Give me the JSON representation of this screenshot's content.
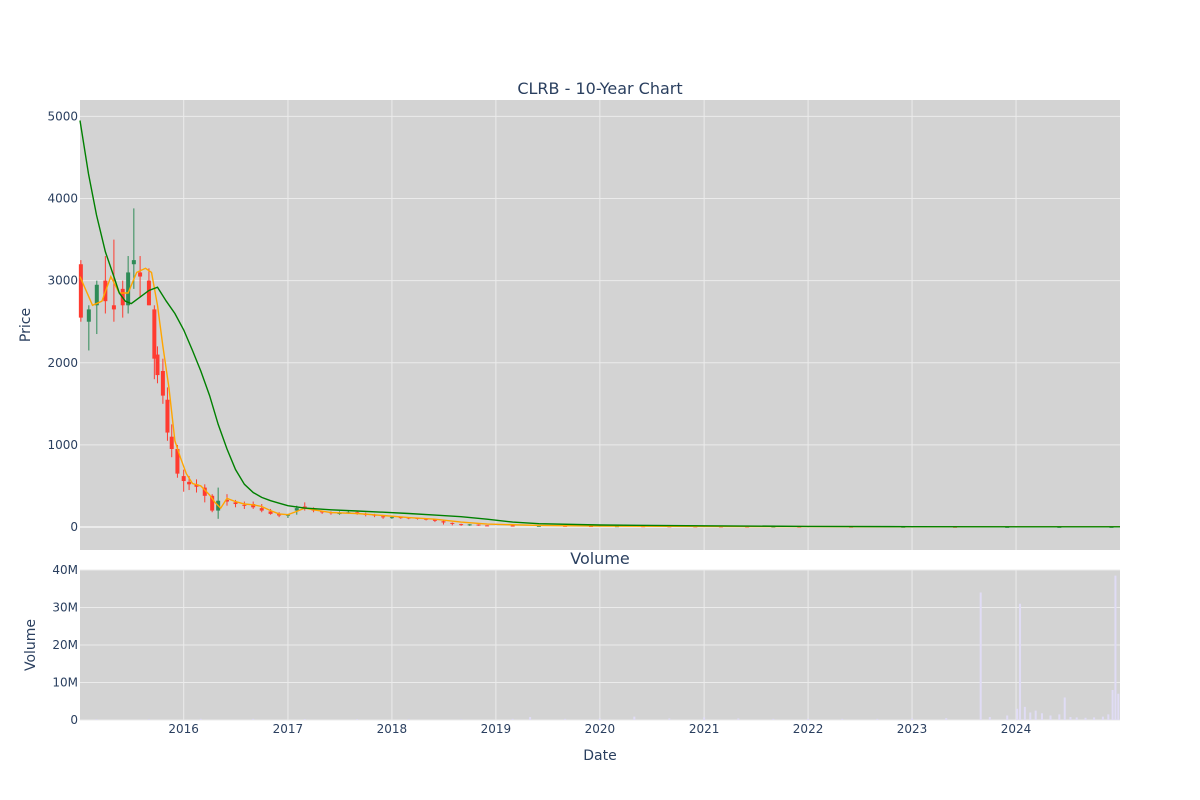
{
  "colors": {
    "plot_bg": "#d3d3d3",
    "grid": "#ebebeb",
    "increasing": "#2e8b57",
    "decreasing": "#ff3b30",
    "ma_short": "#ffa500",
    "ma_long": "#008000",
    "volume": "#e0dcf5",
    "text": "#2a3f5f"
  },
  "chart_data": [
    {
      "type": "candlestick",
      "title": "CLRB - 10-Year Chart",
      "xlabel": "",
      "ylabel": "Price",
      "ylim": [
        -280,
        5200
      ],
      "x_range": [
        "2015-01-02",
        "2024-12-31"
      ],
      "grid": true,
      "y_ticks": [
        0,
        1000,
        2000,
        3000,
        4000,
        5000
      ],
      "x_ticks": [
        "2016",
        "2017",
        "2018",
        "2019",
        "2020",
        "2021",
        "2022",
        "2023",
        "2024"
      ],
      "series": [
        {
          "kind": "candlestick",
          "x": [
            "2015-01-05",
            "2015-02-02",
            "2015-03-02",
            "2015-04-01",
            "2015-05-01",
            "2015-06-01",
            "2015-06-20",
            "2015-07-10",
            "2015-08-01",
            "2015-09-01",
            "2015-09-20",
            "2015-10-01",
            "2015-10-20",
            "2015-11-05",
            "2015-11-20",
            "2015-12-10",
            "2016-01-01",
            "2016-01-20",
            "2016-02-15",
            "2016-03-15",
            "2016-04-10",
            "2016-05-01",
            "2016-06-01",
            "2016-07-01",
            "2016-08-01",
            "2016-09-01",
            "2016-10-01",
            "2016-11-01",
            "2016-12-01",
            "2017-01-01",
            "2017-02-01",
            "2017-03-01",
            "2017-04-01",
            "2017-05-01",
            "2017-06-01",
            "2017-07-01",
            "2017-08-01",
            "2017-09-01",
            "2017-10-01",
            "2017-11-01",
            "2017-12-01",
            "2018-01-01",
            "2018-02-01",
            "2018-03-01",
            "2018-04-01",
            "2018-05-01",
            "2018-06-01",
            "2018-07-01",
            "2018-08-01",
            "2018-09-01",
            "2018-10-01",
            "2018-11-01",
            "2018-12-01",
            "2019-03-01",
            "2019-06-01",
            "2019-09-01",
            "2019-12-01",
            "2020-03-01",
            "2020-06-01",
            "2020-09-01",
            "2020-12-01",
            "2021-03-01",
            "2021-06-01",
            "2021-09-01",
            "2021-12-01",
            "2022-06-01",
            "2022-12-01",
            "2023-06-01",
            "2023-12-01",
            "2024-06-01",
            "2024-12-01"
          ],
          "open": [
            3200,
            2500,
            2700,
            3000,
            2700,
            2900,
            2700,
            3200,
            3100,
            3000,
            2650,
            2100,
            1900,
            1550,
            1100,
            950,
            620,
            550,
            520,
            480,
            380,
            200,
            330,
            300,
            270,
            280,
            230,
            190,
            160,
            140,
            200,
            250,
            220,
            190,
            180,
            170,
            175,
            180,
            160,
            150,
            130,
            120,
            120,
            115,
            110,
            100,
            95,
            70,
            50,
            35,
            30,
            30,
            20,
            18,
            15,
            15,
            12,
            10,
            10,
            9,
            8,
            7,
            6,
            5,
            5,
            4,
            3,
            3,
            2,
            2,
            2
          ],
          "high": [
            3250,
            2700,
            3000,
            3300,
            3500,
            3000,
            3300,
            3880,
            3300,
            3150,
            2700,
            2200,
            2050,
            1700,
            1250,
            1000,
            700,
            620,
            580,
            520,
            400,
            480,
            400,
            330,
            310,
            310,
            280,
            220,
            180,
            160,
            260,
            300,
            240,
            200,
            190,
            190,
            195,
            200,
            175,
            160,
            140,
            130,
            125,
            120,
            115,
            105,
            100,
            80,
            55,
            40,
            35,
            32,
            22,
            20,
            18,
            16,
            14,
            12,
            11,
            10,
            9,
            8,
            7,
            6,
            6,
            5,
            4,
            4,
            3,
            3,
            3
          ],
          "low": [
            2500,
            2150,
            2350,
            2600,
            2500,
            2550,
            2600,
            2900,
            2800,
            2700,
            1800,
            1750,
            1500,
            1050,
            850,
            600,
            430,
            450,
            420,
            300,
            180,
            100,
            260,
            240,
            220,
            220,
            180,
            150,
            120,
            110,
            150,
            200,
            180,
            160,
            150,
            150,
            160,
            150,
            130,
            120,
            100,
            100,
            100,
            95,
            90,
            80,
            60,
            30,
            20,
            15,
            15,
            15,
            10,
            10,
            8,
            8,
            6,
            5,
            5,
            4,
            3,
            3,
            2,
            2,
            1,
            1,
            1,
            1,
            1,
            1,
            1
          ],
          "close": [
            2550,
            2650,
            2950,
            2750,
            2650,
            2700,
            3100,
            3250,
            3050,
            2700,
            2050,
            1850,
            1600,
            1150,
            950,
            650,
            560,
            520,
            490,
            380,
            200,
            320,
            310,
            280,
            260,
            240,
            200,
            160,
            140,
            150,
            230,
            240,
            200,
            185,
            175,
            170,
            180,
            165,
            150,
            140,
            125,
            120,
            118,
            112,
            105,
            98,
            75,
            55,
            40,
            33,
            32,
            22,
            18,
            16,
            15,
            13,
            11,
            10,
            9,
            8,
            7,
            6,
            5,
            5,
            4,
            3,
            3,
            2,
            2,
            2,
            2
          ]
        },
        {
          "kind": "line",
          "name": "",
          "color": "#ffa500",
          "x": [
            "2015-01-02",
            "2015-02-15",
            "2015-03-20",
            "2015-04-20",
            "2015-05-20",
            "2015-06-20",
            "2015-07-20",
            "2015-08-20",
            "2015-09-10",
            "2015-10-01",
            "2015-10-20",
            "2015-11-10",
            "2015-12-01",
            "2015-12-20",
            "2016-01-10",
            "2016-02-01",
            "2016-03-01",
            "2016-04-01",
            "2016-04-20",
            "2016-05-10",
            "2016-06-01",
            "2016-07-01",
            "2016-08-01",
            "2016-09-01",
            "2016-10-01",
            "2016-11-01",
            "2016-12-01",
            "2017-01-01",
            "2017-02-01",
            "2017-03-01",
            "2017-04-01",
            "2017-06-01",
            "2017-09-01",
            "2017-12-01",
            "2018-03-01",
            "2018-06-01",
            "2018-09-01",
            "2018-12-01",
            "2019-06-01",
            "2020-01-01",
            "2021-01-01",
            "2022-01-01",
            "2023-01-01",
            "2024-01-01",
            "2024-12-31"
          ],
          "y": [
            3050,
            2700,
            2750,
            3050,
            2850,
            2850,
            3100,
            3150,
            3100,
            2700,
            2200,
            1700,
            1050,
            850,
            650,
            530,
            500,
            390,
            300,
            230,
            350,
            310,
            280,
            270,
            250,
            200,
            160,
            150,
            190,
            230,
            210,
            175,
            165,
            140,
            115,
            95,
            60,
            35,
            20,
            12,
            8,
            5,
            3,
            2,
            2
          ]
        },
        {
          "kind": "line",
          "name": "",
          "color": "#008000",
          "x": [
            "2015-01-02",
            "2015-02-01",
            "2015-03-01",
            "2015-04-01",
            "2015-05-01",
            "2015-05-20",
            "2015-06-10",
            "2015-07-01",
            "2015-08-01",
            "2015-09-01",
            "2015-10-01",
            "2015-11-01",
            "2015-12-01",
            "2016-01-01",
            "2016-02-01",
            "2016-03-01",
            "2016-04-01",
            "2016-05-01",
            "2016-06-01",
            "2016-07-01",
            "2016-08-01",
            "2016-09-01",
            "2016-10-01",
            "2016-11-01",
            "2016-12-01",
            "2017-01-01",
            "2017-03-01",
            "2017-06-01",
            "2017-09-01",
            "2017-12-01",
            "2018-03-01",
            "2018-06-01",
            "2018-09-01",
            "2018-12-01",
            "2019-03-01",
            "2019-06-01",
            "2020-01-01",
            "2021-01-01",
            "2022-01-01",
            "2023-01-01",
            "2024-01-01",
            "2024-12-31"
          ],
          "y": [
            4950,
            4300,
            3800,
            3350,
            3050,
            2850,
            2750,
            2720,
            2800,
            2880,
            2920,
            2750,
            2600,
            2400,
            2150,
            1900,
            1600,
            1250,
            950,
            700,
            520,
            420,
            360,
            320,
            290,
            260,
            230,
            210,
            195,
            180,
            165,
            145,
            125,
            95,
            60,
            40,
            25,
            15,
            8,
            4,
            2,
            2
          ]
        }
      ]
    },
    {
      "type": "bar",
      "title": "Volume",
      "xlabel": "Date",
      "ylabel": "Volume",
      "ylim": [
        0,
        40000000
      ],
      "grid": true,
      "y_tick_labels": [
        "0",
        "10M",
        "20M",
        "30M",
        "40M"
      ],
      "y_ticks": [
        0,
        10000000,
        20000000,
        30000000,
        40000000
      ],
      "x_ticks": [
        "2016",
        "2017",
        "2018",
        "2019",
        "2020",
        "2021",
        "2022",
        "2023",
        "2024"
      ],
      "x": [
        "2015-03-01",
        "2015-09-01",
        "2016-03-01",
        "2016-09-01",
        "2017-03-01",
        "2017-09-01",
        "2018-03-01",
        "2018-09-01",
        "2019-03-01",
        "2019-05-01",
        "2019-09-01",
        "2020-01-01",
        "2020-05-01",
        "2020-09-01",
        "2021-01-01",
        "2021-05-01",
        "2021-09-01",
        "2022-01-01",
        "2022-05-01",
        "2022-09-01",
        "2023-01-01",
        "2023-05-01",
        "2023-08-30",
        "2023-10-01",
        "2023-12-01",
        "2024-01-05",
        "2024-01-15",
        "2024-02-01",
        "2024-02-20",
        "2024-03-10",
        "2024-04-01",
        "2024-05-01",
        "2024-06-01",
        "2024-06-20",
        "2024-07-10",
        "2024-08-01",
        "2024-09-01",
        "2024-10-01",
        "2024-11-01",
        "2024-11-20",
        "2024-12-05",
        "2024-12-15",
        "2024-12-25"
      ],
      "values": [
        200000,
        200000,
        300000,
        300000,
        250000,
        250000,
        200000,
        200000,
        300000,
        800000,
        300000,
        400000,
        900000,
        400000,
        700000,
        400000,
        300000,
        300000,
        300000,
        300000,
        400000,
        500000,
        34000000,
        800000,
        1200000,
        3000000,
        31000000,
        3500000,
        2000000,
        2500000,
        1800000,
        1200000,
        1500000,
        6000000,
        800000,
        700000,
        600000,
        700000,
        900000,
        1500000,
        8000000,
        38500000,
        7000000
      ]
    }
  ]
}
